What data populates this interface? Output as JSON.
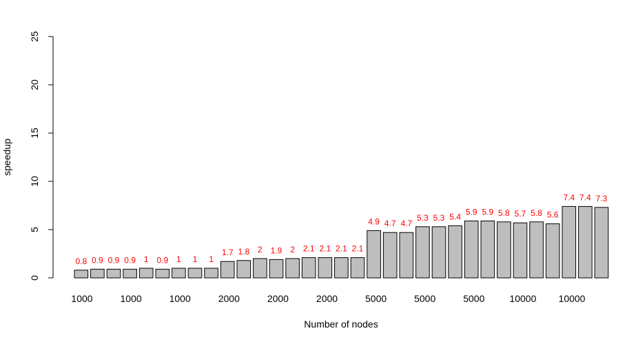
{
  "chart_data": {
    "type": "bar",
    "title": "",
    "xlabel": "Number of nodes",
    "ylabel": "speedup",
    "ylim": [
      0,
      25
    ],
    "y_ticks": [
      0,
      5,
      10,
      15,
      20,
      25
    ],
    "grid": false,
    "legend": "none",
    "bar_color": "#bebebe",
    "bar_border_color": "#000000",
    "data_label_color": "#ff0000",
    "x_tick_labels": [
      "1000",
      "1000",
      "1000",
      "2000",
      "2000",
      "2000",
      "5000",
      "5000",
      "5000",
      "10000",
      "10000"
    ],
    "values": [
      0.8,
      0.9,
      0.9,
      0.9,
      1,
      0.9,
      1,
      1,
      1,
      1.7,
      1.8,
      2,
      1.9,
      2,
      2.1,
      2.1,
      2.1,
      2.1,
      4.9,
      4.7,
      4.7,
      5.3,
      5.3,
      5.4,
      5.9,
      5.9,
      5.8,
      5.7,
      5.8,
      5.6,
      7.4,
      7.4,
      7.3
    ],
    "value_labels": [
      "0.8",
      "0.9",
      "0.9",
      "0.9",
      "1",
      "0.9",
      "1",
      "1",
      "1",
      "1.7",
      "1.8",
      "2",
      "1.9",
      "2",
      "2.1",
      "2.1",
      "2.1",
      "2.1",
      "4.9",
      "4.7",
      "4.7",
      "5.3",
      "5.3",
      "5.4",
      "5.9",
      "5.9",
      "5.8",
      "5.7",
      "5.8",
      "5.6",
      "7.4",
      "7.4",
      "7.3"
    ]
  }
}
